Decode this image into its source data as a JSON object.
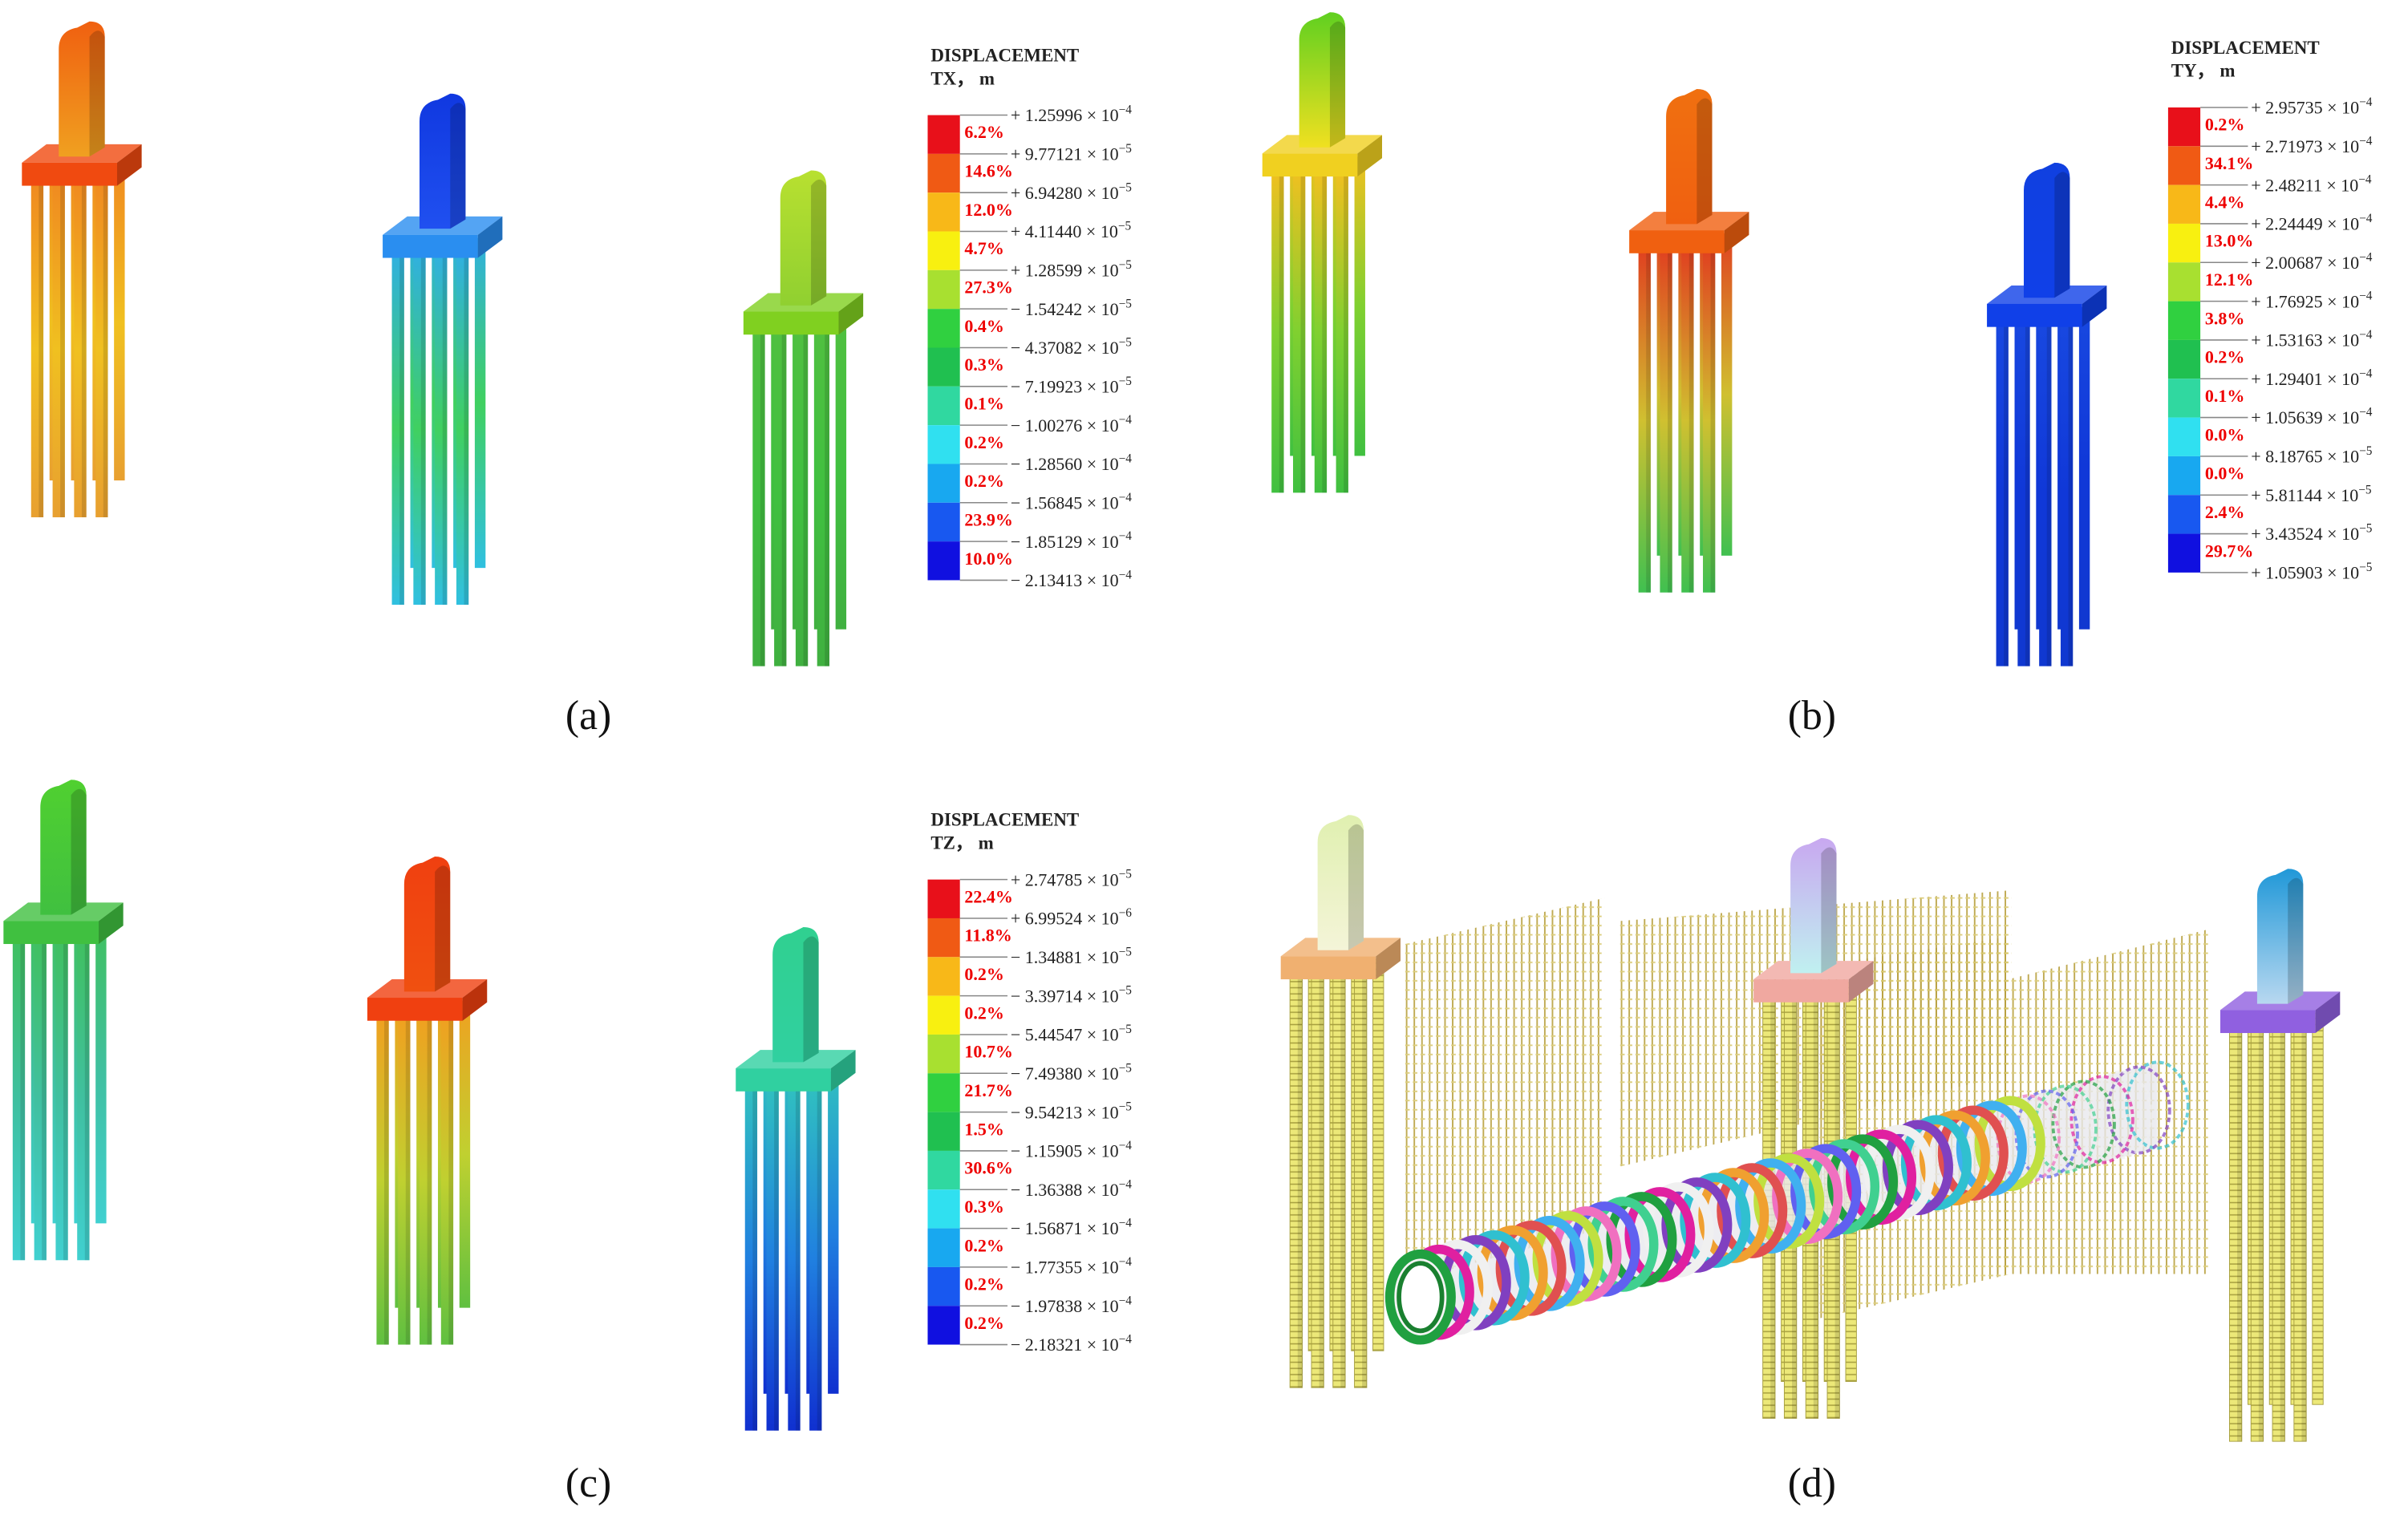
{
  "panels": [
    {
      "label": "(a)",
      "legend": {
        "title": "DISPLACEMENT",
        "unit": "TX， m",
        "levels": [
          [
            "+ 1.25996 × 10",
            "−4"
          ],
          [
            "+ 9.77121 × 10",
            "−5"
          ],
          [
            "+ 6.94280 × 10",
            "−5"
          ],
          [
            "+ 4.11440 × 10",
            "−5"
          ],
          [
            "+ 1.28599 × 10",
            "−5"
          ],
          [
            "− 1.54242 × 10",
            "−5"
          ],
          [
            "− 4.37082 × 10",
            "−5"
          ],
          [
            "− 7.19923 × 10",
            "−5"
          ],
          [
            "− 1.00276 × 10",
            "−4"
          ],
          [
            "− 1.28560 × 10",
            "−4"
          ],
          [
            "− 1.56845 × 10",
            "−4"
          ],
          [
            "− 1.85129 × 10",
            "−4"
          ],
          [
            "− 2.13413 × 10",
            "−4"
          ]
        ],
        "percents": [
          "6.2%",
          "14.6%",
          "12.0%",
          "4.7%",
          "27.3%",
          "0.4%",
          "0.3%",
          "0.1%",
          "0.2%",
          "0.2%",
          "23.9%",
          "10.0%"
        ]
      }
    },
    {
      "label": "(b)",
      "legend": {
        "title": "DISPLACEMENT",
        "unit": "TY， m",
        "levels": [
          [
            "+ 2.95735 × 10",
            "−4"
          ],
          [
            "+ 2.71973 × 10",
            "−4"
          ],
          [
            "+ 2.48211 × 10",
            "−4"
          ],
          [
            "+ 2.24449 × 10",
            "−4"
          ],
          [
            "+ 2.00687 × 10",
            "−4"
          ],
          [
            "+ 1.76925 × 10",
            "−4"
          ],
          [
            "+ 1.53163 × 10",
            "−4"
          ],
          [
            "+ 1.29401 × 10",
            "−4"
          ],
          [
            "+ 1.05639 × 10",
            "−4"
          ],
          [
            "+ 8.18765 × 10",
            "−5"
          ],
          [
            "+ 5.81144 × 10",
            "−5"
          ],
          [
            "+ 3.43524 × 10",
            "−5"
          ],
          [
            "+ 1.05903 × 10",
            "−5"
          ]
        ],
        "percents": [
          "0.2%",
          "34.1%",
          "4.4%",
          "13.0%",
          "12.1%",
          "3.8%",
          "0.2%",
          "0.1%",
          "0.0%",
          "0.0%",
          "2.4%",
          "29.7%"
        ]
      }
    },
    {
      "label": "(c)",
      "legend": {
        "title": "DISPLACEMENT",
        "unit": "TZ， m",
        "levels": [
          [
            "+ 2.74785 × 10",
            "−5"
          ],
          [
            "+ 6.99524 × 10",
            "−6"
          ],
          [
            "− 1.34881 × 10",
            "−5"
          ],
          [
            "− 3.39714 × 10",
            "−5"
          ],
          [
            "− 5.44547 × 10",
            "−5"
          ],
          [
            "− 7.49380 × 10",
            "−5"
          ],
          [
            "− 9.54213 × 10",
            "−5"
          ],
          [
            "− 1.15905 × 10",
            "−4"
          ],
          [
            "− 1.36388 × 10",
            "−4"
          ],
          [
            "− 1.56871 × 10",
            "−4"
          ],
          [
            "− 1.77355 × 10",
            "−4"
          ],
          [
            "− 1.97838 × 10",
            "−4"
          ],
          [
            "− 2.18321 × 10",
            "−4"
          ]
        ],
        "percents": [
          "22.4%",
          "11.8%",
          "0.2%",
          "0.2%",
          "10.7%",
          "21.7%",
          "1.5%",
          "30.6%",
          "0.3%",
          "0.2%",
          "0.2%",
          "0.2%"
        ]
      }
    },
    {
      "label": "(d)"
    }
  ]
}
